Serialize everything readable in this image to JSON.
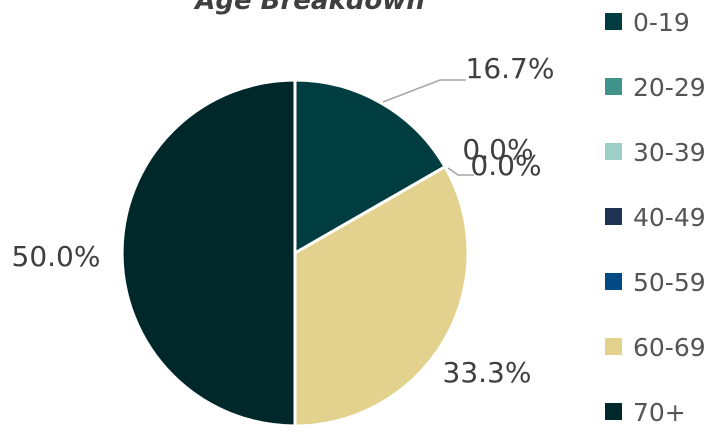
{
  "chart_data": {
    "type": "pie",
    "title": "Age Breakdown",
    "categories": [
      "0-19",
      "20-29",
      "30-39",
      "40-49",
      "50-59",
      "60-69",
      "70+"
    ],
    "values": [
      16.7,
      0.0,
      0.0,
      0.0,
      0.0,
      33.3,
      50.0
    ],
    "data_labels": [
      "16.7%",
      "0.0%",
      "0.0%",
      "",
      "",
      "33.3%",
      "50.0%"
    ],
    "colors": [
      "#003d40",
      "#3f9389",
      "#9ecfc6",
      "#1f3454",
      "#014a86",
      "#e2d28d",
      "#00272a"
    ],
    "legend_position": "right"
  }
}
